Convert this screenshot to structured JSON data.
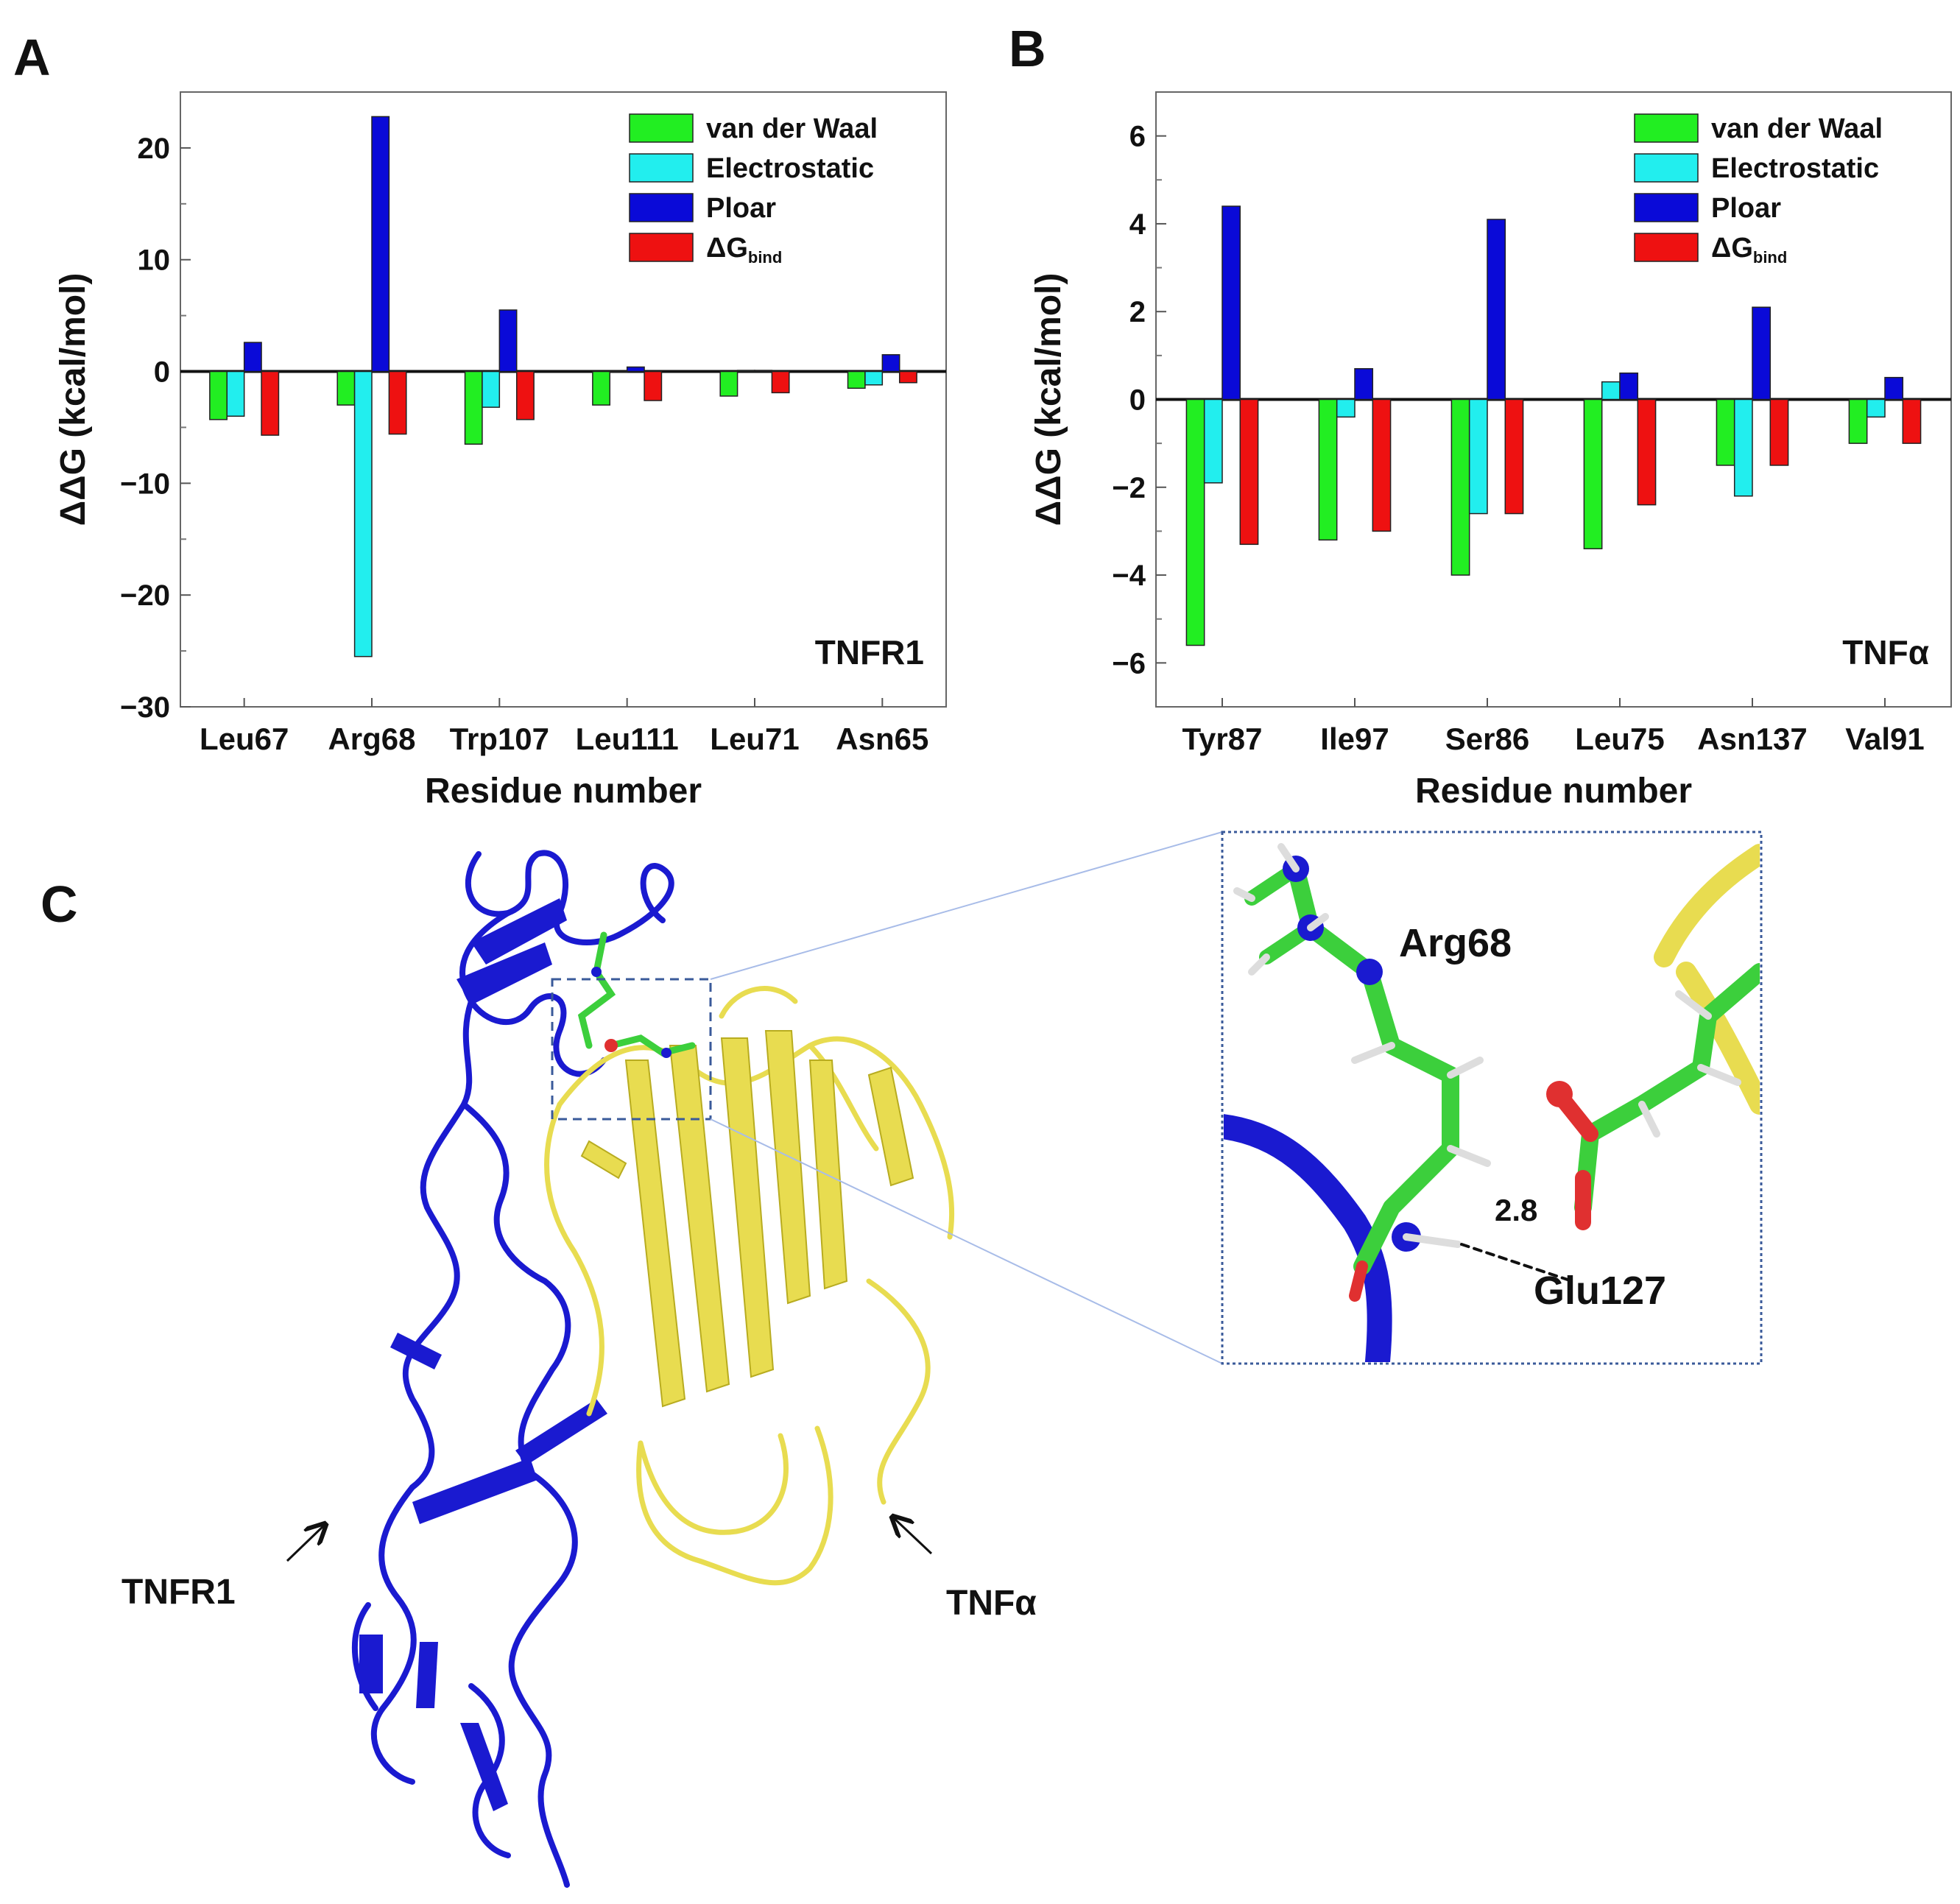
{
  "panels": {
    "a": "A",
    "b": "B",
    "c": "C"
  },
  "chart_data": [
    {
      "type": "bar",
      "panel": "A",
      "annotation": "TNFR1",
      "xlabel": "Residue number",
      "ylabel": "ΔΔG (kcal/mol)",
      "ylim": [
        -30,
        25
      ],
      "yticks": [
        20,
        10,
        0,
        -10,
        -20,
        -30
      ],
      "ytick_labels": [
        "20",
        "10",
        "0",
        "−10",
        "−20",
        "−30"
      ],
      "categories": [
        "Leu67",
        "Arg68",
        "Trp107",
        "Leu111",
        "Leu71",
        "Asn65"
      ],
      "series": [
        {
          "name": "van der Waal",
          "color": "#22ee22",
          "values": [
            -4.3,
            -3.0,
            -6.5,
            -3.0,
            -2.2,
            -1.5
          ]
        },
        {
          "name": "Electrostatic",
          "color": "#22eeee",
          "values": [
            -4.0,
            -25.5,
            -3.2,
            0.0,
            0.1,
            -1.2
          ]
        },
        {
          "name": "Ploar",
          "color": "#0a0ad8",
          "values": [
            2.6,
            22.8,
            5.5,
            0.4,
            0.1,
            1.5
          ]
        },
        {
          "name": "ΔG",
          "sub": "bind",
          "color": "#ee1111",
          "values": [
            -5.7,
            -5.6,
            -4.3,
            -2.6,
            -1.9,
            -1.0
          ]
        }
      ],
      "legend": "top-right"
    },
    {
      "type": "bar",
      "panel": "B",
      "annotation": "TNFα",
      "xlabel": "Residue number",
      "ylabel": "ΔΔG (kcal/mol)",
      "ylim": [
        -7,
        7
      ],
      "yticks": [
        6,
        4,
        2,
        0,
        -2,
        -4,
        -6
      ],
      "ytick_labels": [
        "6",
        "4",
        "2",
        "0",
        "−2",
        "−4",
        "−6"
      ],
      "categories": [
        "Tyr87",
        "Ile97",
        "Ser86",
        "Leu75",
        "Asn137",
        "Val91"
      ],
      "series": [
        {
          "name": "van der Waal",
          "color": "#22ee22",
          "values": [
            -5.6,
            -3.2,
            -4.0,
            -3.4,
            -1.5,
            -1.0
          ]
        },
        {
          "name": "Electrostatic",
          "color": "#22eeee",
          "values": [
            -1.9,
            -0.4,
            -2.6,
            0.4,
            -2.2,
            -0.4
          ]
        },
        {
          "name": "Ploar",
          "color": "#0a0ad8",
          "values": [
            4.4,
            0.7,
            4.1,
            0.6,
            2.1,
            0.5
          ]
        },
        {
          "name": "ΔG",
          "sub": "bind",
          "color": "#ee1111",
          "values": [
            -3.3,
            -3.0,
            -2.6,
            -2.4,
            -1.5,
            -1.0
          ]
        }
      ],
      "legend": "top-right"
    }
  ],
  "structure": {
    "receptor_label": "TNFR1",
    "ligand_label": "TNFα",
    "residue_1": "Arg68",
    "residue_2": "Glu127",
    "distance": "2.8",
    "colors": {
      "receptor": "#1a1ad0",
      "ligand": "#f0e85a",
      "carbon": "#3ccf3c",
      "oxygen": "#e03030"
    }
  }
}
